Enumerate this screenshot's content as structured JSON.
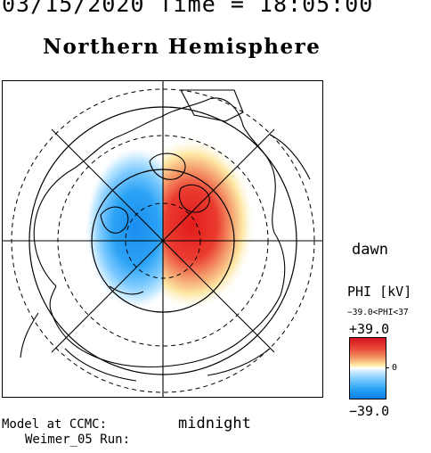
{
  "header": {
    "time_line": "03/15/2020 Time = 18:05:00",
    "hemisphere_title": "Northern Hemisphere"
  },
  "map": {
    "projection": "polar",
    "field": "electric potential",
    "dawn_label": "dawn",
    "midnight_label": "midnight",
    "negative_cell_color": "#1a8cf0",
    "positive_cell_color": "#e21b1b"
  },
  "colorbar": {
    "title": "PHI [kV]",
    "range_text": "−39.0<PHI<37",
    "max_label": "+39.0",
    "zero_label": "0",
    "min_label": "−39.0",
    "max_value": 39.0,
    "min_value": -39.0,
    "colors": [
      "#0a7fe6",
      "#7ccaff",
      "#ffffff",
      "#fff3b0",
      "#f4a06a",
      "#d8121e"
    ]
  },
  "credits": {
    "line1": "Model at CCMC:",
    "line2": "Weimer_05 Run:"
  }
}
